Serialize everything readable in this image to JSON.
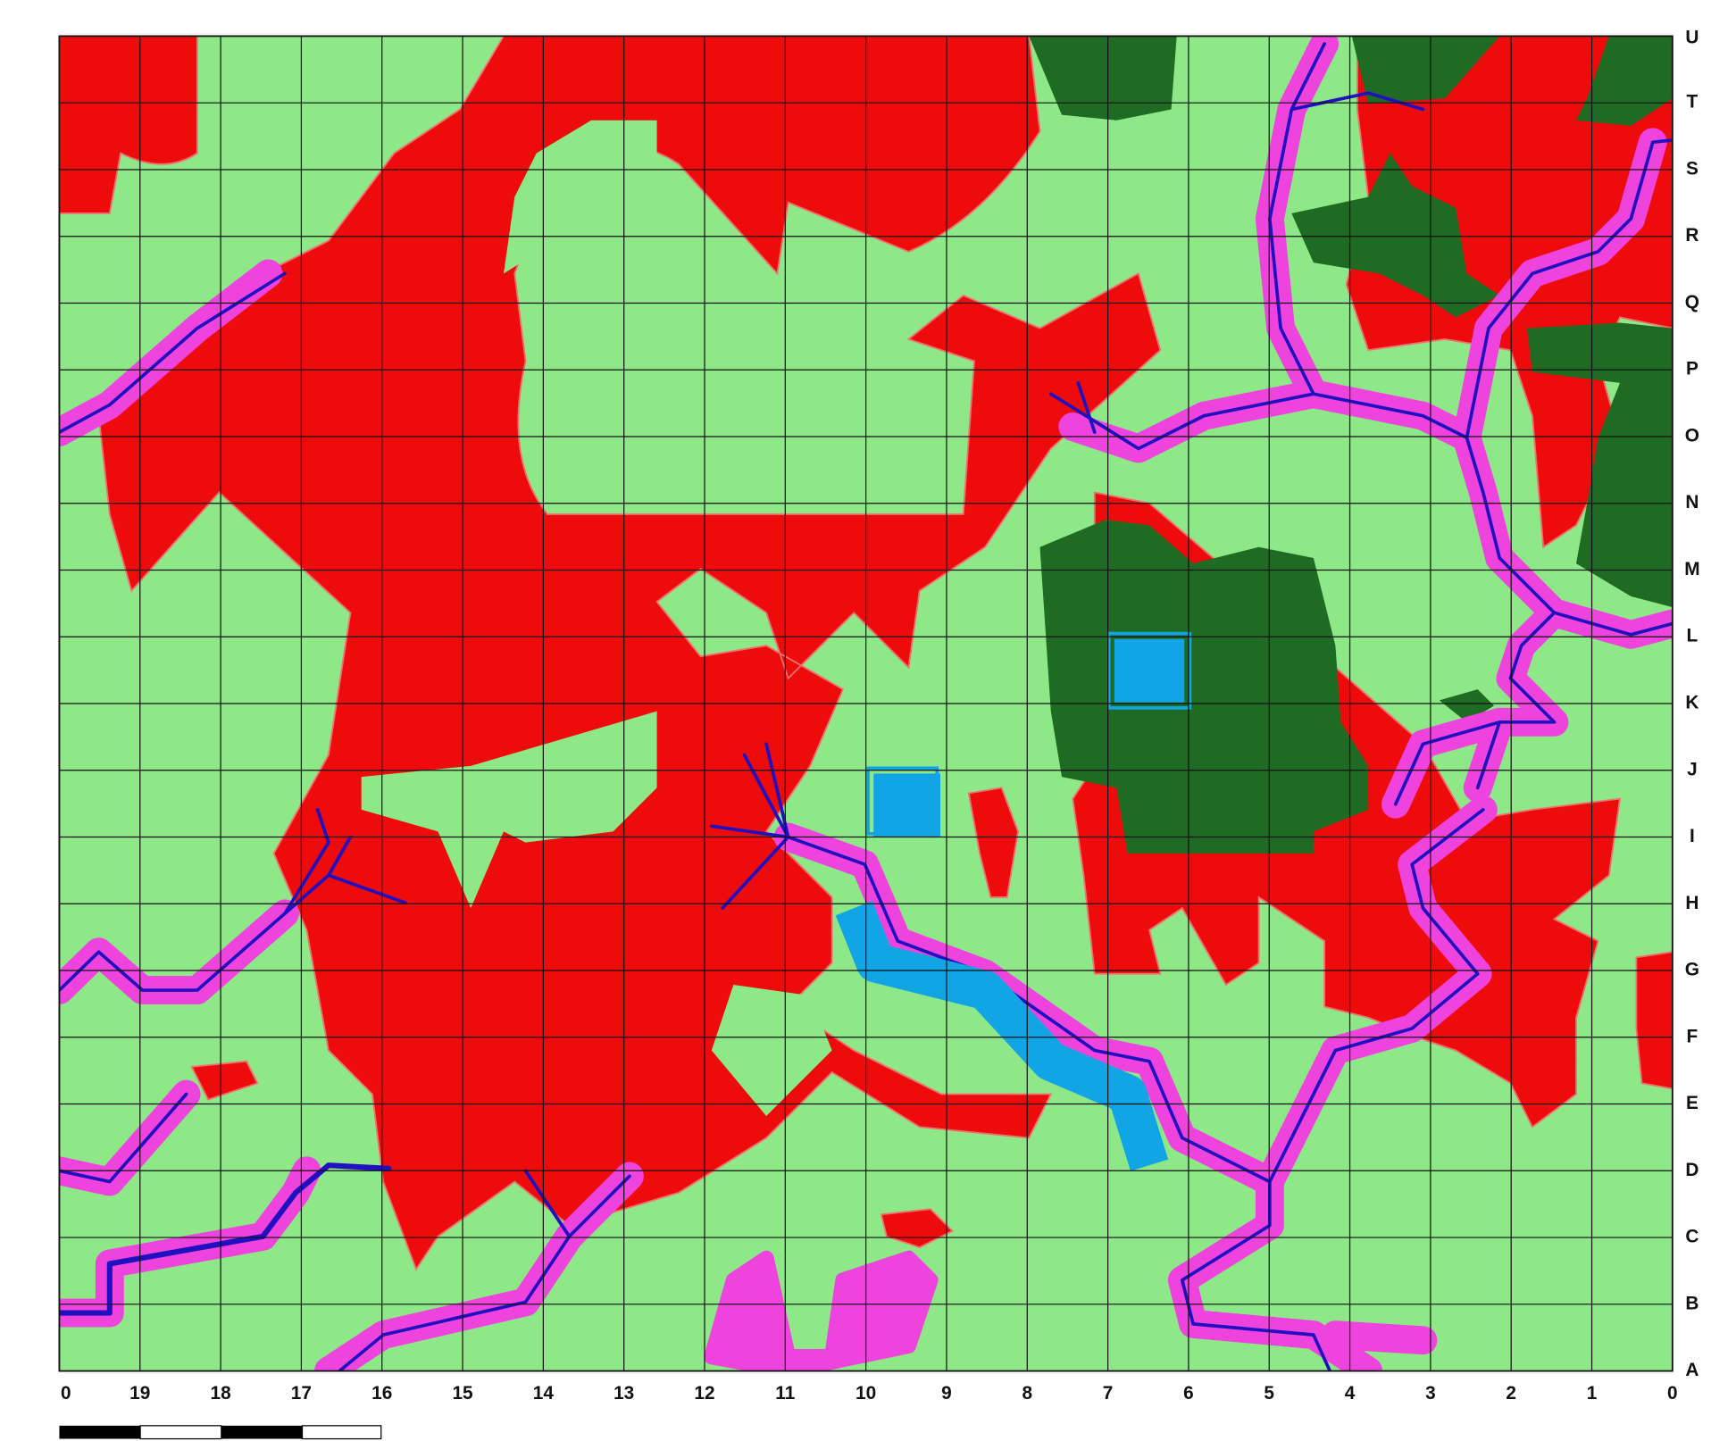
{
  "map": {
    "column_labels": [
      "0",
      "19",
      "18",
      "17",
      "16",
      "15",
      "14",
      "13",
      "12",
      "11",
      "10",
      "9",
      "8",
      "7",
      "6",
      "5",
      "4",
      "3",
      "2",
      "1",
      "0"
    ],
    "row_labels": [
      "U",
      "T",
      "S",
      "R",
      "Q",
      "P",
      "O",
      "N",
      "M",
      "L",
      "K",
      "J",
      "I",
      "H",
      "G",
      "F",
      "E",
      "D",
      "C",
      "B",
      "A"
    ]
  }
}
